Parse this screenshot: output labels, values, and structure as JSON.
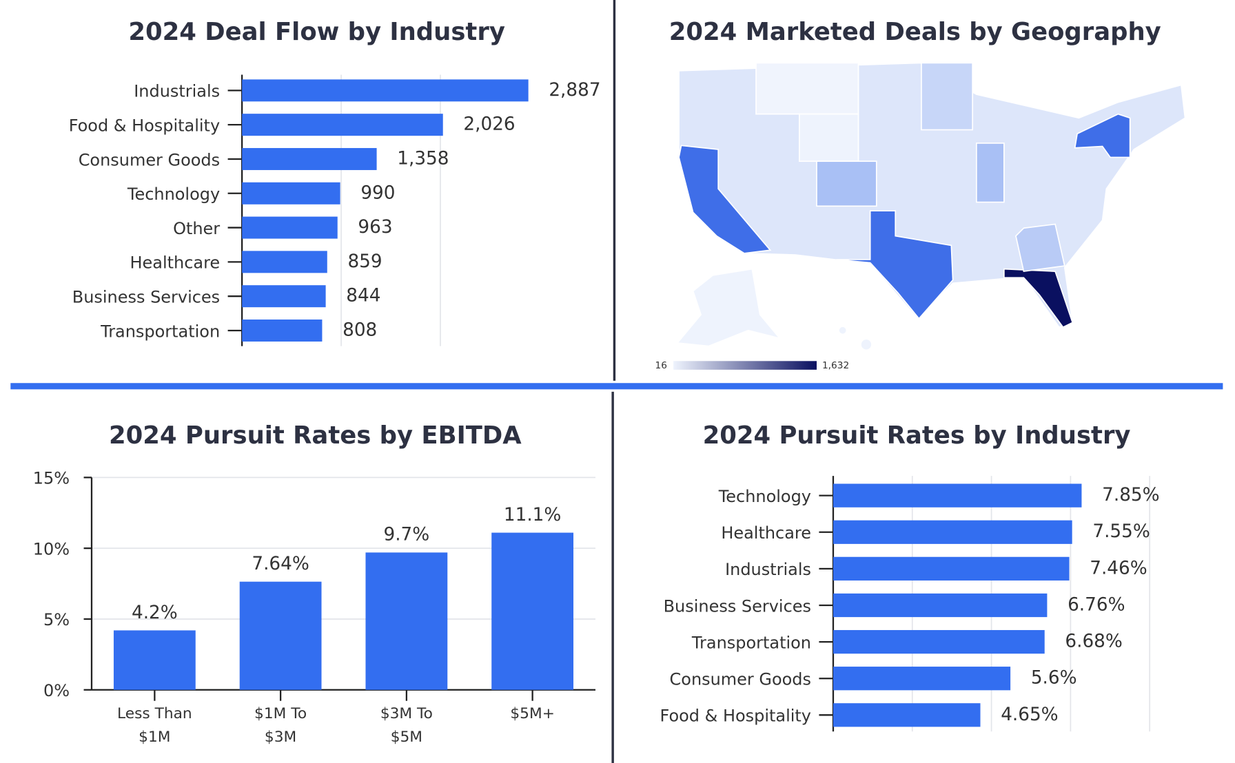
{
  "chart_data": [
    {
      "type": "hbar",
      "title": "2024 Deal Flow by Industry",
      "categories": [
        "Industrials",
        "Food & Hospitality",
        "Consumer Goods",
        "Technology",
        "Other",
        "Healthcare",
        "Business Services",
        "Transportation"
      ],
      "values": [
        2887,
        2026,
        1358,
        990,
        963,
        859,
        844,
        808
      ],
      "value_labels": [
        "2,887",
        "2,026",
        "1,358",
        "990",
        "963",
        "859",
        "844",
        "808"
      ],
      "color": "#336ef0",
      "xlim": [
        0,
        3000
      ],
      "xticks": [
        1000,
        2000
      ],
      "grid": true
    },
    {
      "type": "choropleth",
      "title": "2024 Marketed Deals by Geography",
      "colorscale": [
        "#eef3fd",
        "#0a1060"
      ],
      "clim": [
        16,
        1632
      ],
      "cticks": [
        16,
        {
          "value": 1632,
          "label": "1,632"
        }
      ]
    },
    {
      "type": "bar",
      "title": "2024 Pursuit Rates by EBITDA",
      "categories": [
        "Less Than\n$1M",
        "$1M To\n$3M",
        "$3M To\n$5M",
        "$5M+"
      ],
      "values": [
        4.2,
        7.64,
        9.7,
        11.1
      ],
      "value_labels": [
        "4.2%",
        "7.64%",
        "9.7%",
        "11.1%"
      ],
      "color": "#336ef0",
      "ylim": [
        0,
        15
      ],
      "yticks": [
        {
          "value": 0,
          "label": "0%"
        },
        {
          "value": 5,
          "label": "5%"
        },
        {
          "value": 10,
          "label": "10%"
        },
        {
          "value": 15,
          "label": "15%"
        }
      ],
      "grid": true
    },
    {
      "type": "hbar",
      "title": "2024 Pursuit Rates by Industry",
      "categories": [
        "Technology",
        "Healthcare",
        "Industrials",
        "Business Services",
        "Transportation",
        "Consumer Goods",
        "Food & Hospitality"
      ],
      "values": [
        7.85,
        7.55,
        7.46,
        6.76,
        6.68,
        5.6,
        4.65
      ],
      "value_labels": [
        "7.85%",
        "7.55%",
        "7.46%",
        "6.76%",
        "6.68%",
        "5.6%",
        "4.65%"
      ],
      "color": "#336ef0",
      "xlim": [
        0,
        10
      ],
      "xticks": [
        2.5,
        5,
        7.5,
        10
      ],
      "grid": true
    }
  ]
}
